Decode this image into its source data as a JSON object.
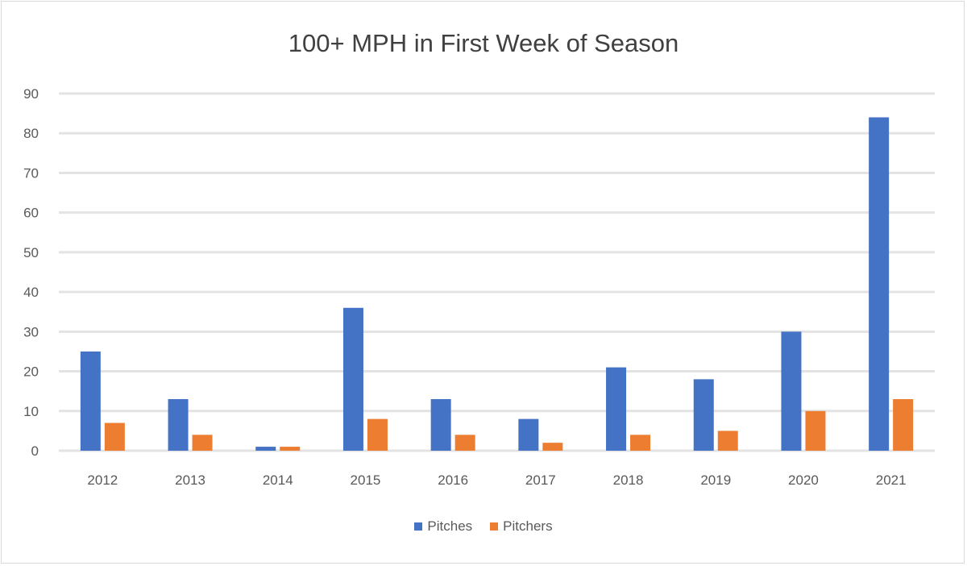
{
  "chart_data": {
    "type": "bar",
    "title": "100+ MPH in First Week of Season",
    "xlabel": "",
    "ylabel": "",
    "ylim": [
      0,
      90
    ],
    "yticks": [
      0,
      10,
      20,
      30,
      40,
      50,
      60,
      70,
      80,
      90
    ],
    "grid": true,
    "legend_position": "bottom",
    "categories": [
      "2012",
      "2013",
      "2014",
      "2015",
      "2016",
      "2017",
      "2018",
      "2019",
      "2020",
      "2021"
    ],
    "series": [
      {
        "name": "Pitches",
        "color": "#4472c4",
        "values": [
          25,
          13,
          1,
          36,
          13,
          8,
          21,
          18,
          30,
          84
        ]
      },
      {
        "name": "Pitchers",
        "color": "#ed7d31",
        "values": [
          7,
          4,
          1,
          8,
          4,
          2,
          4,
          5,
          10,
          13
        ]
      }
    ]
  }
}
